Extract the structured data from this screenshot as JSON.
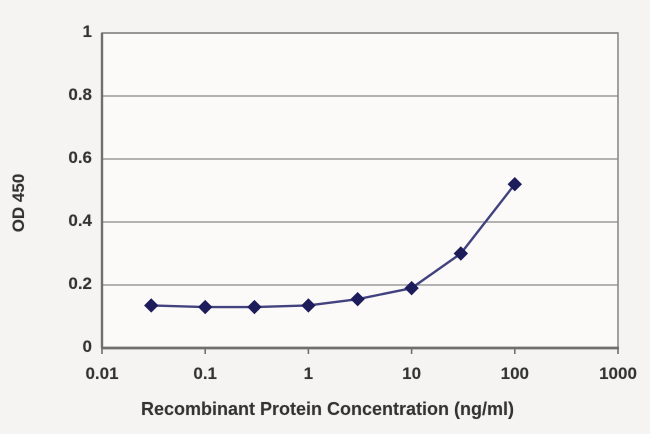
{
  "chart_data": {
    "type": "line",
    "title": "",
    "xlabel": "Recombinant Protein Concentration (ng/ml)",
    "ylabel": "OD 450",
    "x_scale": "log",
    "xlim": [
      0.01,
      1000
    ],
    "ylim": [
      0,
      1
    ],
    "x_tick_values": [
      0.01,
      0.1,
      1,
      10,
      100,
      1000
    ],
    "x_tick_labels": [
      "0.01",
      "0.1",
      "1",
      "10",
      "100",
      "1000"
    ],
    "y_tick_values": [
      0,
      0.2,
      0.4,
      0.6,
      0.8,
      1
    ],
    "y_tick_labels": [
      "0",
      "0.2",
      "0.4",
      "0.6",
      "0.8",
      "1"
    ],
    "grid": "horizontal",
    "legend": "none",
    "series": [
      {
        "name": "OD 450",
        "marker": "diamond",
        "x": [
          0.03,
          0.1,
          0.3,
          1,
          3,
          10,
          30,
          100
        ],
        "y": [
          0.135,
          0.13,
          0.13,
          0.135,
          0.155,
          0.19,
          0.3,
          0.52
        ]
      }
    ],
    "colors": {
      "line": "#42427e",
      "marker": "#1d1d5c",
      "grid": "#9a9a9a",
      "frame": "#8a8a8a",
      "axis": "#6f6f6f",
      "text": "#333333",
      "plot_bg": "#fbfaf9",
      "canvas_bg": "#f5f4f2"
    }
  }
}
